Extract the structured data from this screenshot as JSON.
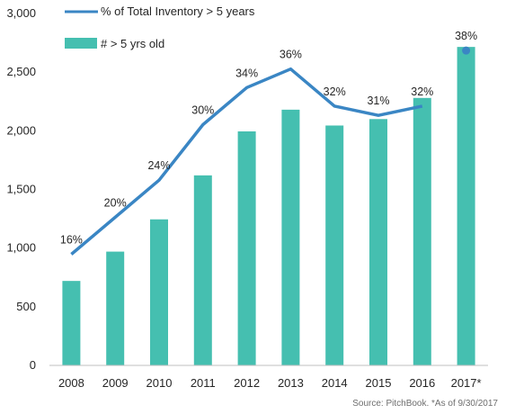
{
  "chart_data": {
    "type": "bar",
    "categories": [
      "2008",
      "2009",
      "2010",
      "2011",
      "2012",
      "2013",
      "2014",
      "2015",
      "2016",
      "2017*"
    ],
    "series": [
      {
        "name": "# > 5 yrs old",
        "type": "bar",
        "axis": "left",
        "color": "#45bfb0",
        "values": [
          720,
          970,
          1245,
          1620,
          1995,
          2180,
          2045,
          2100,
          2280,
          2715
        ]
      },
      {
        "name": "% of Total Inventory > 5 years",
        "type": "line",
        "axis": "right-hidden",
        "color": "#3a86c4",
        "values": [
          16,
          20,
          24,
          30,
          34,
          36,
          32,
          31,
          32,
          38
        ],
        "labels": [
          "16%",
          "20%",
          "24%",
          "30%",
          "34%",
          "36%",
          "32%",
          "31%",
          "32%",
          "38%"
        ],
        "note": "2017* value shown as a separate marker, not connected to the line"
      }
    ],
    "yaxis": {
      "ylim": [
        0,
        3000
      ],
      "ticks": [
        0,
        500,
        1000,
        1500,
        2000,
        2500,
        3000
      ],
      "tick_labels": [
        "0",
        "500",
        "1,000",
        "1,500",
        "2,000",
        "2,500",
        "3,000"
      ]
    },
    "line_axis_range": [
      4,
      42
    ],
    "grid": false,
    "legend": {
      "placement": "top-left",
      "items": [
        {
          "label": "% of Total Inventory > 5 years",
          "marker": "line",
          "color": "#3a86c4"
        },
        {
          "label": "# > 5 yrs old",
          "marker": "box",
          "color": "#45bfb0"
        }
      ]
    },
    "source_note": "Source: PitchBook. *As of 9/30/2017"
  }
}
